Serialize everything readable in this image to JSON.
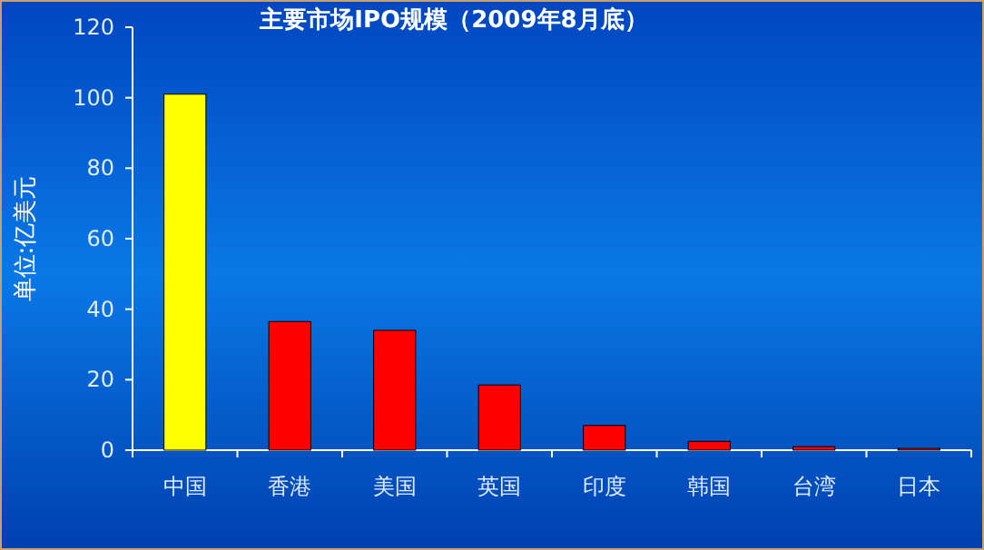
{
  "chart_data": {
    "type": "bar",
    "title": "主要市场IPO规模（2009年8月底）",
    "ylabel": "单位:亿美元",
    "categories": [
      "中国",
      "香港",
      "美国",
      "英国",
      "印度",
      "韩国",
      "台湾",
      "日本"
    ],
    "values": [
      101,
      36.5,
      34,
      18.5,
      7,
      2.5,
      1,
      0.5
    ],
    "colors": [
      "#ffff00",
      "#ff0000",
      "#ff0000",
      "#ff0000",
      "#ff0000",
      "#ff0000",
      "#ff0000",
      "#ff0000"
    ],
    "ylim": [
      0,
      120
    ],
    "yticks": [
      0,
      20,
      40,
      60,
      80,
      100,
      120
    ],
    "grid": false
  }
}
